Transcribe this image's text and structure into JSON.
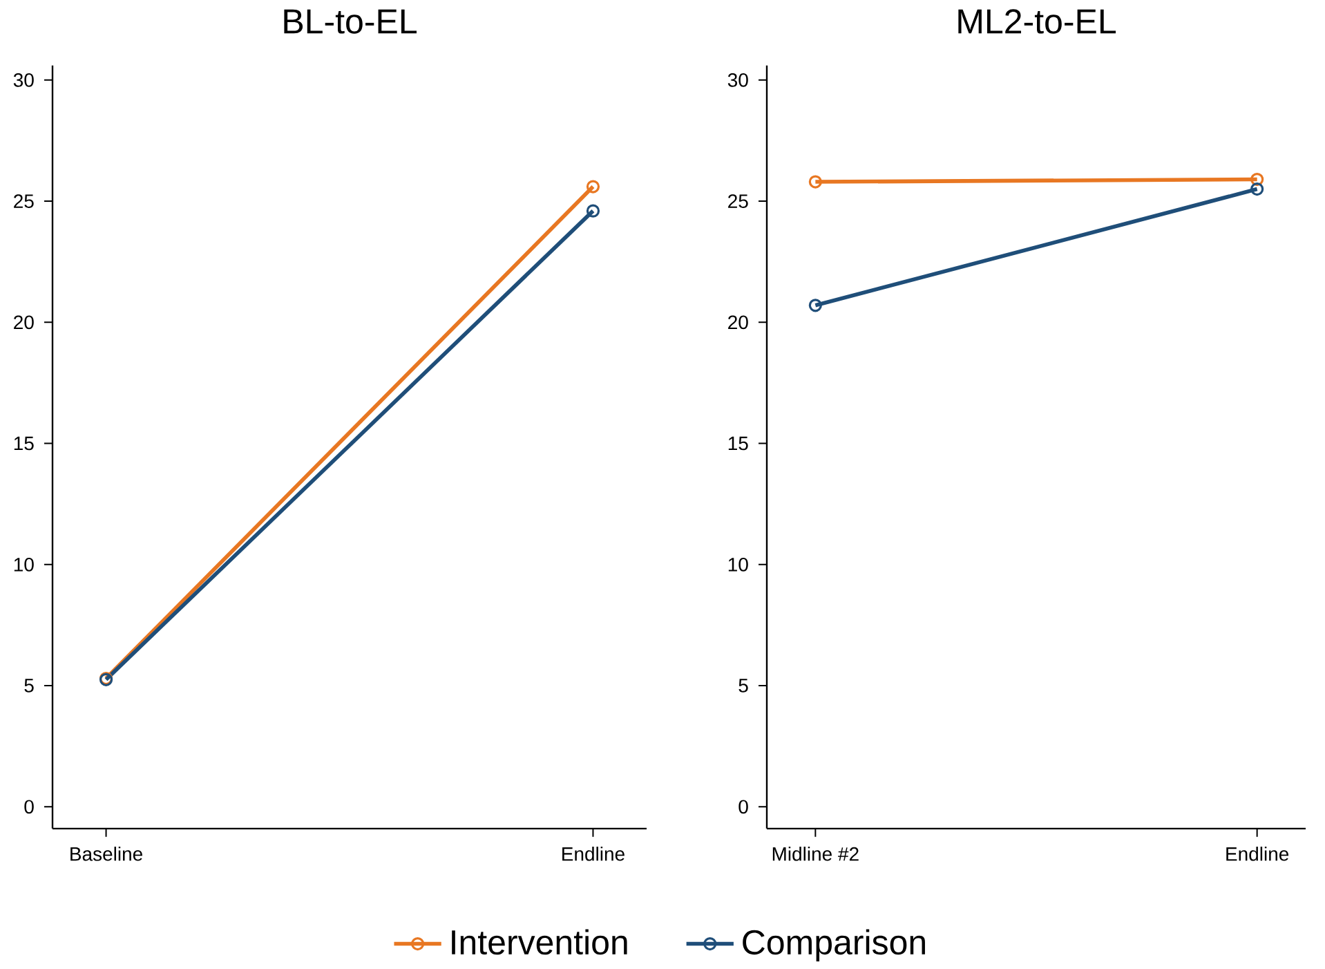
{
  "chart_data": [
    {
      "type": "line",
      "title": "BL-to-EL",
      "categories": [
        "Baseline",
        "Endline"
      ],
      "ylim": [
        -0.9,
        30.6
      ],
      "yticks": [
        0,
        5,
        10,
        15,
        20,
        25,
        30
      ],
      "marker": "circle",
      "grid": false,
      "legend": "bottom",
      "series": [
        {
          "name": "Intervention",
          "color": "#e87722",
          "values": [
            5.3,
            25.6
          ]
        },
        {
          "name": "Comparison",
          "color": "#1f4e79",
          "values": [
            5.25,
            24.6
          ]
        }
      ]
    },
    {
      "type": "line",
      "title": "ML2-to-EL",
      "categories": [
        "Midline #2",
        "Endline"
      ],
      "ylim": [
        -0.9,
        30.6
      ],
      "yticks": [
        0,
        5,
        10,
        15,
        20,
        25,
        30
      ],
      "marker": "circle",
      "grid": false,
      "series": [
        {
          "color": "#e87722",
          "values": [
            25.8,
            25.9
          ]
        },
        {
          "color": "#1f4e79",
          "values": [
            20.7,
            25.5
          ]
        }
      ]
    }
  ]
}
